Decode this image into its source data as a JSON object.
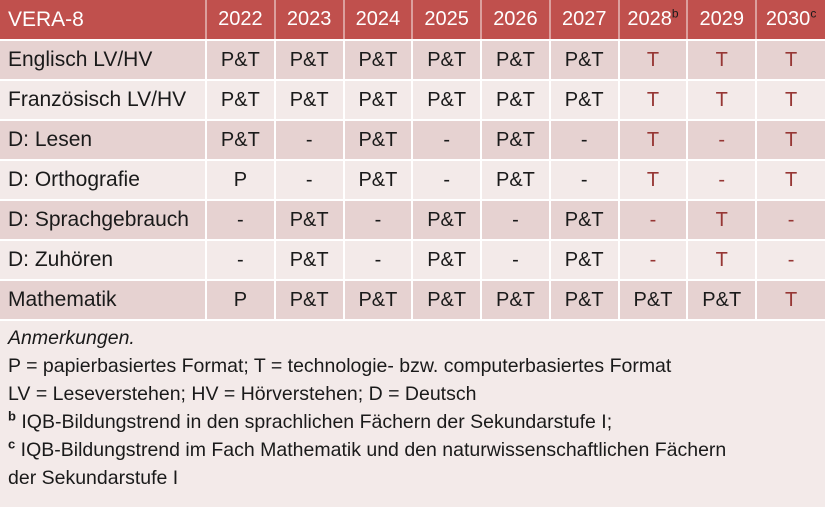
{
  "table": {
    "title": "VERA-8",
    "columns": [
      {
        "label": "2022",
        "sup": ""
      },
      {
        "label": "2023",
        "sup": ""
      },
      {
        "label": "2024",
        "sup": ""
      },
      {
        "label": "2025",
        "sup": ""
      },
      {
        "label": "2026",
        "sup": ""
      },
      {
        "label": "2027",
        "sup": ""
      },
      {
        "label": "2028",
        "sup": "b"
      },
      {
        "label": "2029",
        "sup": ""
      },
      {
        "label": "2030",
        "sup": "c"
      }
    ],
    "rows": [
      {
        "label": "Englisch LV/HV",
        "cells": [
          {
            "text": "P&T",
            "red": false
          },
          {
            "text": "P&T",
            "red": false
          },
          {
            "text": "P&T",
            "red": false
          },
          {
            "text": "P&T",
            "red": false
          },
          {
            "text": "P&T",
            "red": false
          },
          {
            "text": "P&T",
            "red": false
          },
          {
            "text": "T",
            "red": true
          },
          {
            "text": "T",
            "red": true
          },
          {
            "text": "T",
            "red": true
          }
        ]
      },
      {
        "label": "Französisch LV/HV",
        "cells": [
          {
            "text": "P&T",
            "red": false
          },
          {
            "text": "P&T",
            "red": false
          },
          {
            "text": "P&T",
            "red": false
          },
          {
            "text": "P&T",
            "red": false
          },
          {
            "text": "P&T",
            "red": false
          },
          {
            "text": "P&T",
            "red": false
          },
          {
            "text": "T",
            "red": true
          },
          {
            "text": "T",
            "red": true
          },
          {
            "text": "T",
            "red": true
          }
        ]
      },
      {
        "label": "D: Lesen",
        "cells": [
          {
            "text": "P&T",
            "red": false
          },
          {
            "text": "-",
            "red": false
          },
          {
            "text": "P&T",
            "red": false
          },
          {
            "text": "-",
            "red": false
          },
          {
            "text": "P&T",
            "red": false
          },
          {
            "text": "-",
            "red": false
          },
          {
            "text": "T",
            "red": true
          },
          {
            "text": "-",
            "red": true
          },
          {
            "text": "T",
            "red": true
          }
        ]
      },
      {
        "label": "D: Orthografie",
        "cells": [
          {
            "text": "P",
            "red": false
          },
          {
            "text": "-",
            "red": false
          },
          {
            "text": "P&T",
            "red": false
          },
          {
            "text": "-",
            "red": false
          },
          {
            "text": "P&T",
            "red": false
          },
          {
            "text": "-",
            "red": false
          },
          {
            "text": "T",
            "red": true
          },
          {
            "text": "-",
            "red": true
          },
          {
            "text": "T",
            "red": true
          }
        ]
      },
      {
        "label": "D: Sprachgebrauch",
        "cells": [
          {
            "text": "-",
            "red": false
          },
          {
            "text": "P&T",
            "red": false
          },
          {
            "text": "-",
            "red": false
          },
          {
            "text": "P&T",
            "red": false
          },
          {
            "text": "-",
            "red": false
          },
          {
            "text": "P&T",
            "red": false
          },
          {
            "text": "-",
            "red": true
          },
          {
            "text": "T",
            "red": true
          },
          {
            "text": "-",
            "red": true
          }
        ]
      },
      {
        "label": "D: Zuhören",
        "cells": [
          {
            "text": "-",
            "red": false
          },
          {
            "text": "P&T",
            "red": false
          },
          {
            "text": "-",
            "red": false
          },
          {
            "text": "P&T",
            "red": false
          },
          {
            "text": "-",
            "red": false
          },
          {
            "text": "P&T",
            "red": false
          },
          {
            "text": "-",
            "red": true
          },
          {
            "text": "T",
            "red": true
          },
          {
            "text": "-",
            "red": true
          }
        ]
      },
      {
        "label": "Mathematik",
        "cells": [
          {
            "text": "P",
            "red": false
          },
          {
            "text": "P&T",
            "red": false
          },
          {
            "text": "P&T",
            "red": false
          },
          {
            "text": "P&T",
            "red": false
          },
          {
            "text": "P&T",
            "red": false
          },
          {
            "text": "P&T",
            "red": false
          },
          {
            "text": "P&T",
            "red": false
          },
          {
            "text": "P&T",
            "red": false
          },
          {
            "text": "T",
            "red": true
          }
        ]
      }
    ]
  },
  "notes": {
    "heading": "Anmerkungen.",
    "lines": [
      {
        "sup": "",
        "text": "P = papierbasiertes Format; T = technologie- bzw. computerbasiertes Format"
      },
      {
        "sup": "",
        "text": "LV = Leseverstehen; HV = Hörverstehen; D = Deutsch"
      },
      {
        "sup": "b",
        "text": "IQB-Bildungstrend in den sprachlichen Fächern der Sekundarstufe I;"
      },
      {
        "sup": "c",
        "text": "IQB-Bildungstrend im Fach Mathematik und den naturwissenschaftlichen Fächern der Sekundarstufe I"
      }
    ]
  },
  "colors": {
    "header_bg": "#c0504d",
    "row_dark": "#e6d2d1",
    "row_light": "#f3eae9",
    "accent_text": "#963634",
    "header_text": "#ffffff",
    "body_text": "#1a1a1a"
  }
}
